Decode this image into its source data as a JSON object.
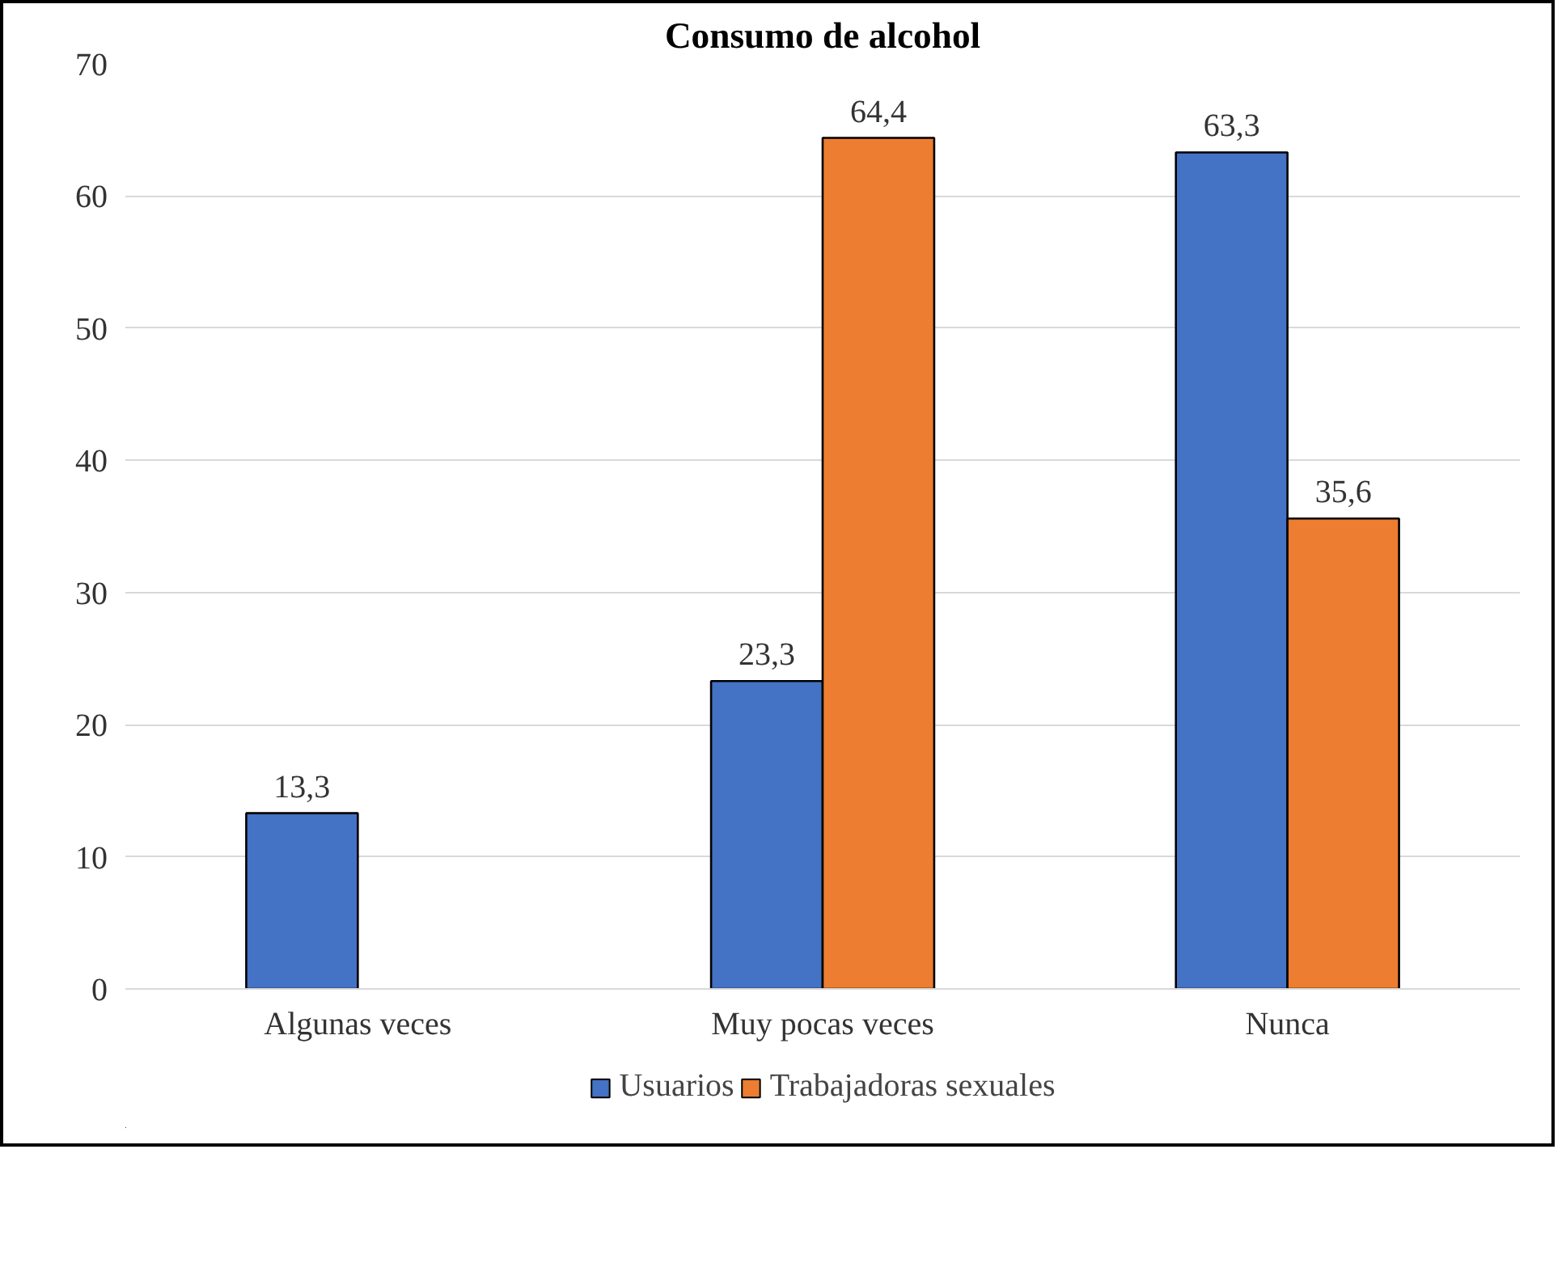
{
  "chart_data": {
    "type": "bar",
    "title": "Consumo de alcohol",
    "categories": [
      "Algunas veces",
      "Muy pocas veces",
      "Nunca"
    ],
    "series": [
      {
        "name": "Usuarios",
        "color": "#4472c4",
        "values": [
          13.3,
          23.3,
          63.3
        ],
        "value_labels": [
          "13,3",
          "23,3",
          "63,3"
        ]
      },
      {
        "name": "Trabajadoras sexuales",
        "color": "#ed7d31",
        "values": [
          null,
          64.4,
          35.6
        ],
        "value_labels": [
          null,
          "64,4",
          "35,6"
        ]
      }
    ],
    "ylim": [
      0,
      70
    ],
    "yticks": [
      0,
      10,
      20,
      30,
      40,
      50,
      60,
      70
    ],
    "grid": "y",
    "legend": "bottom"
  }
}
